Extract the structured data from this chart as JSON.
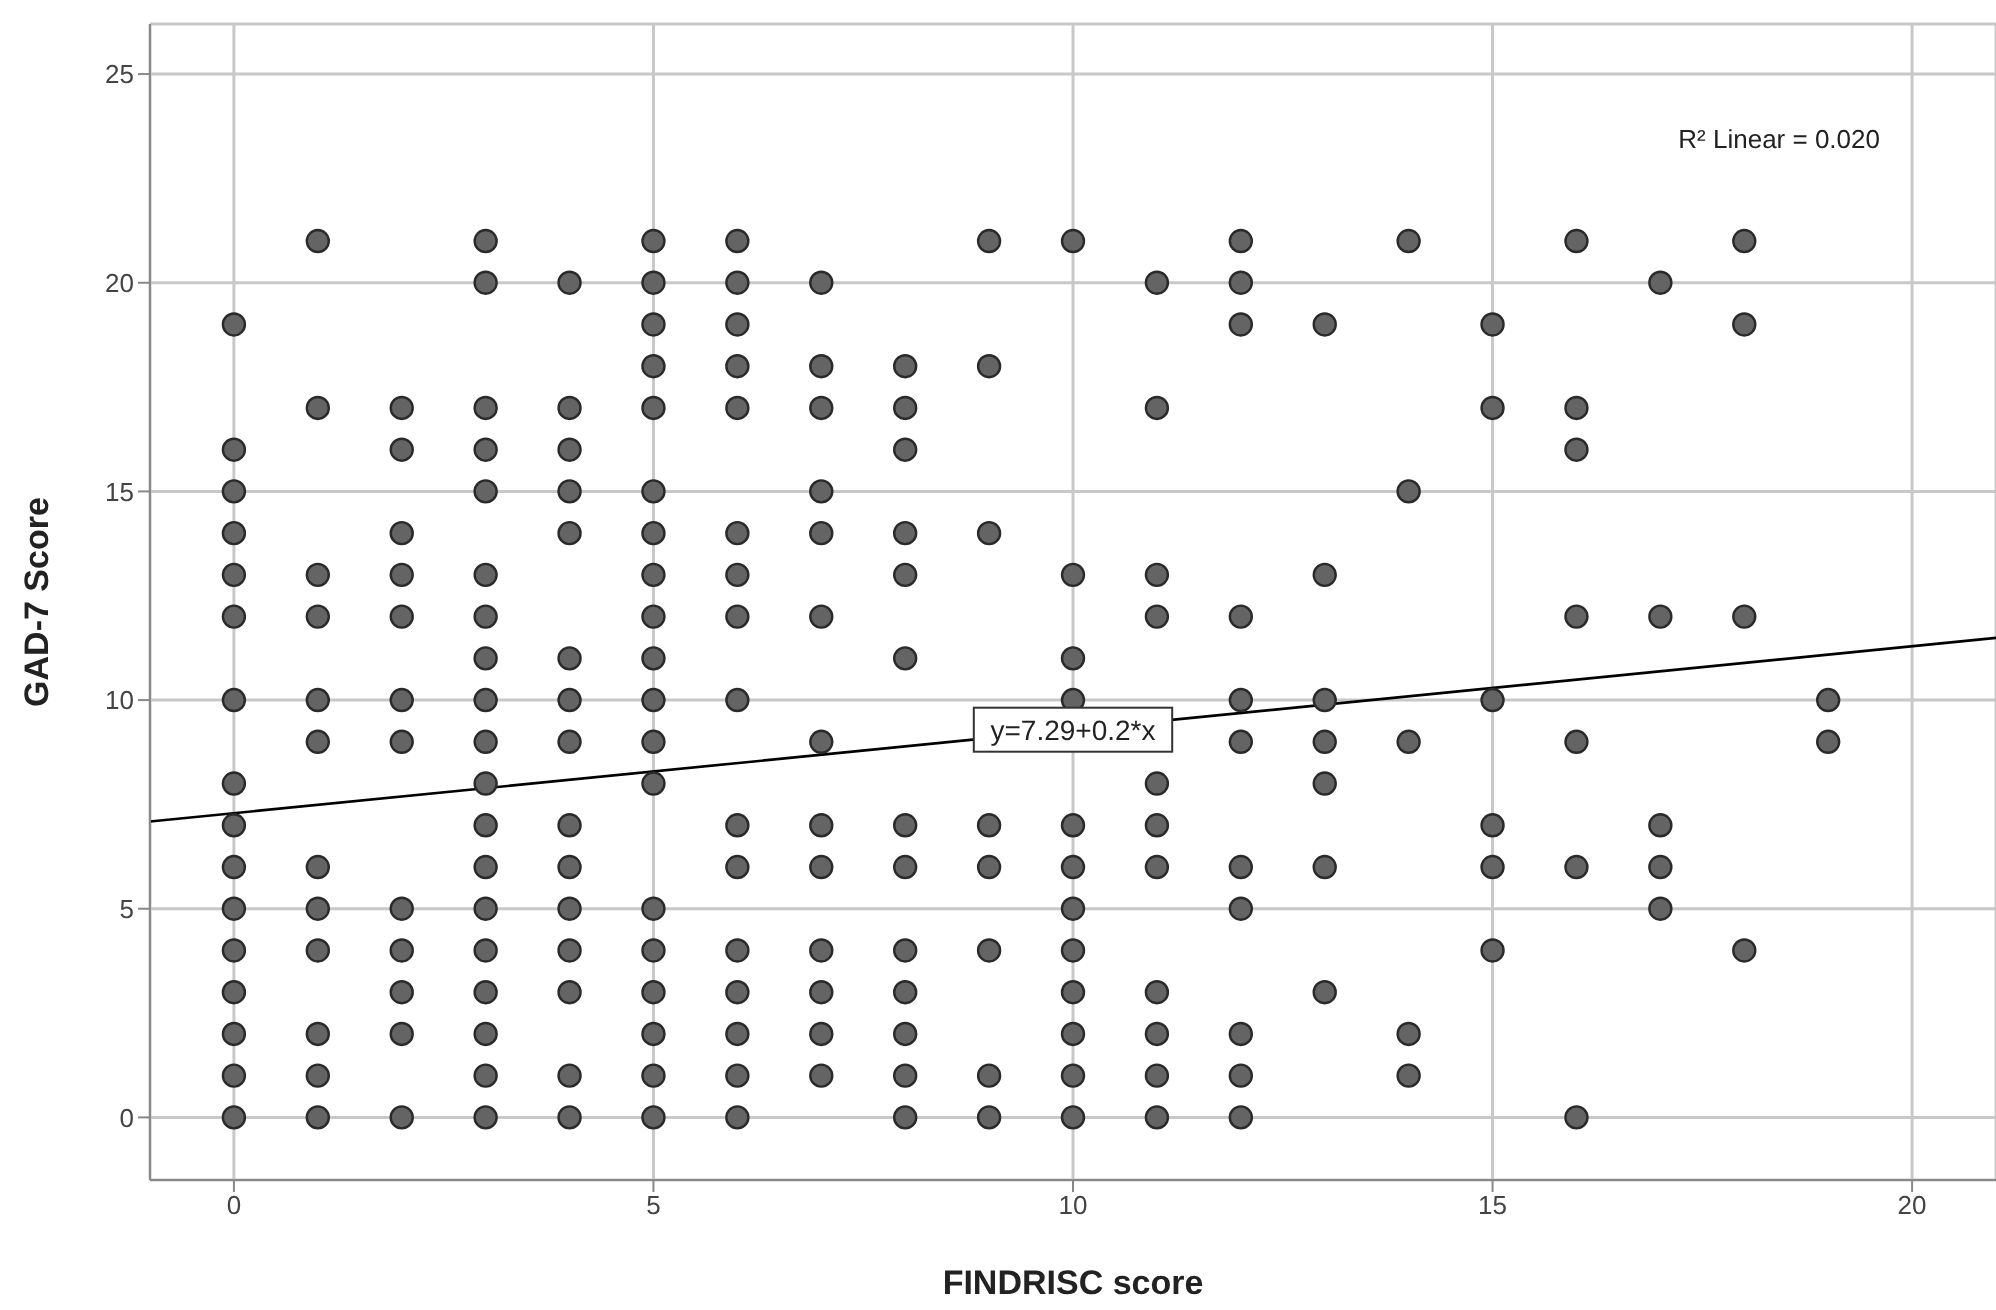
{
  "chart_data": {
    "type": "scatter",
    "xlabel": "FINDRISC score",
    "ylabel": "GAD-7 Score",
    "xlim": [
      -1,
      21
    ],
    "ylim": [
      -1.5,
      26.2
    ],
    "xticks": [
      0,
      5,
      10,
      15,
      20
    ],
    "yticks": [
      0,
      5,
      10,
      15,
      20,
      25
    ],
    "grid": true,
    "series": [
      {
        "marker": "circle",
        "color": "#646464",
        "x": [
          0,
          0,
          0,
          0,
          0,
          0,
          0,
          0,
          0,
          0,
          0,
          0,
          0,
          0,
          0,
          0,
          1,
          1,
          1,
          1,
          1,
          1,
          1,
          1,
          1,
          1,
          1,
          1,
          2,
          2,
          2,
          2,
          2,
          2,
          2,
          2,
          2,
          2,
          2,
          2,
          3,
          3,
          3,
          3,
          3,
          3,
          3,
          3,
          3,
          3,
          3,
          3,
          3,
          3,
          3,
          3,
          3,
          3,
          3,
          4,
          4,
          4,
          4,
          4,
          4,
          4,
          4,
          4,
          4,
          4,
          4,
          4,
          4,
          4,
          5,
          5,
          5,
          5,
          5,
          5,
          5,
          5,
          5,
          5,
          5,
          5,
          5,
          5,
          5,
          5,
          5,
          5,
          5,
          6,
          6,
          6,
          6,
          6,
          6,
          6,
          6,
          6,
          6,
          6,
          6,
          6,
          6,
          6,
          6,
          7,
          7,
          7,
          7,
          7,
          7,
          7,
          7,
          7,
          7,
          7,
          7,
          7,
          8,
          8,
          8,
          8,
          8,
          8,
          8,
          8,
          8,
          8,
          8,
          8,
          8,
          9,
          9,
          9,
          9,
          9,
          9,
          9,
          9,
          10,
          10,
          10,
          10,
          10,
          10,
          10,
          10,
          10,
          10,
          10,
          10,
          11,
          11,
          11,
          11,
          11,
          11,
          11,
          11,
          11,
          11,
          11,
          12,
          12,
          12,
          12,
          12,
          12,
          12,
          12,
          12,
          12,
          12,
          13,
          13,
          13,
          13,
          13,
          13,
          13,
          14,
          14,
          14,
          14,
          14,
          15,
          15,
          15,
          15,
          15,
          15,
          16,
          16,
          16,
          16,
          16,
          16,
          16,
          17,
          17,
          17,
          17,
          17,
          18,
          18,
          18,
          18,
          19,
          19
        ],
        "values": [
          19,
          16,
          15,
          14,
          13,
          12,
          10,
          8,
          7,
          6,
          5,
          4,
          3,
          2,
          1,
          0,
          21,
          17,
          13,
          12,
          10,
          9,
          6,
          5,
          4,
          2,
          1,
          0,
          17,
          16,
          14,
          13,
          12,
          10,
          9,
          5,
          4,
          3,
          2,
          0,
          21,
          20,
          17,
          16,
          15,
          13,
          12,
          11,
          10,
          9,
          8,
          7,
          6,
          5,
          4,
          3,
          2,
          1,
          0,
          20,
          17,
          16,
          15,
          14,
          11,
          10,
          9,
          7,
          6,
          5,
          4,
          3,
          1,
          0,
          21,
          20,
          19,
          18,
          17,
          15,
          14,
          13,
          12,
          11,
          10,
          9,
          8,
          5,
          4,
          3,
          2,
          1,
          0,
          21,
          20,
          19,
          18,
          17,
          14,
          13,
          12,
          10,
          7,
          6,
          4,
          3,
          2,
          1,
          0,
          20,
          18,
          17,
          15,
          14,
          12,
          9,
          7,
          6,
          4,
          3,
          2,
          1,
          18,
          17,
          16,
          14,
          13,
          11,
          7,
          6,
          4,
          3,
          2,
          1,
          0,
          21,
          18,
          14,
          7,
          6,
          4,
          1,
          0,
          21,
          13,
          11,
          10,
          7,
          6,
          5,
          4,
          3,
          2,
          1,
          0,
          20,
          17,
          13,
          12,
          8,
          7,
          6,
          3,
          2,
          1,
          0,
          21,
          20,
          19,
          12,
          10,
          9,
          6,
          5,
          2,
          1,
          0,
          19,
          13,
          10,
          9,
          8,
          6,
          3,
          21,
          15,
          9,
          2,
          1,
          19,
          17,
          10,
          7,
          6,
          4,
          21,
          17,
          16,
          12,
          9,
          6,
          0,
          20,
          12,
          7,
          6,
          5,
          21,
          19,
          12,
          4,
          10,
          9
        ]
      },
      {
        "type": "line",
        "marker": "none",
        "color": "#000000",
        "x": [
          -1,
          21
        ],
        "values": [
          7.09,
          11.49
        ]
      }
    ],
    "annotations": [
      "R² Linear = 0.020",
      {
        "text": "y=7.29+0.2*x",
        "x": 10,
        "y": 9.29
      }
    ]
  }
}
